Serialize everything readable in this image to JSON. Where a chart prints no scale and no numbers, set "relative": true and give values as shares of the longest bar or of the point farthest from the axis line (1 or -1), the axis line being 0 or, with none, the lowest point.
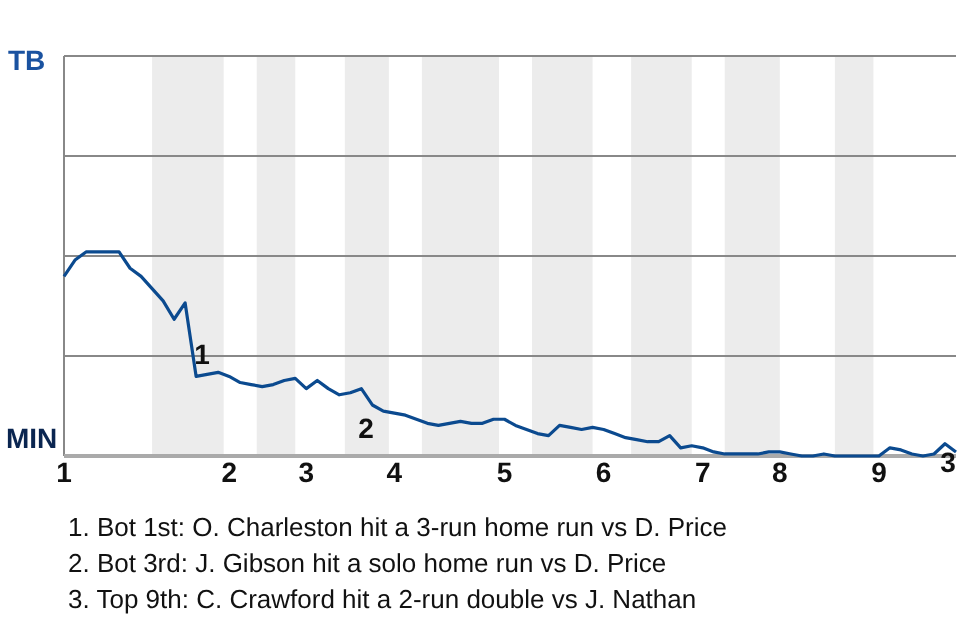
{
  "chart_data": {
    "type": "line",
    "relative": true,
    "marker": "none",
    "line_style": "solid",
    "ref_lines": [
      {
        "axis": "y",
        "value": 0.49,
        "color": "#888888"
      }
    ],
    "categories": [
      "1",
      null,
      null,
      null,
      null,
      null,
      null,
      null,
      null,
      null,
      null,
      null,
      null,
      null,
      null,
      "2",
      null,
      null,
      null,
      null,
      null,
      null,
      "3",
      null,
      null,
      null,
      null,
      null,
      null,
      null,
      "4",
      null,
      null,
      null,
      null,
      null,
      null,
      null,
      null,
      null,
      "5",
      null,
      null,
      null,
      null,
      null,
      null,
      null,
      null,
      "6",
      null,
      null,
      null,
      null,
      null,
      null,
      null,
      null,
      "7",
      null,
      null,
      null,
      null,
      null,
      null,
      "8",
      null,
      null,
      null,
      null,
      null,
      null,
      null,
      null,
      "9",
      null,
      null,
      null,
      null,
      null,
      null,
      null
    ],
    "series": [
      {
        "color": "#0b4a8f",
        "values": [
          0.88,
          0.96,
          1,
          1,
          1,
          1,
          0.92,
          0.88,
          0.82,
          0.76,
          0.67,
          0.75,
          0.39,
          0.4,
          0.41,
          0.39,
          0.36,
          0.35,
          0.34,
          0.35,
          0.37,
          0.38,
          0.33,
          0.37,
          0.33,
          0.3,
          0.31,
          0.33,
          0.25,
          0.22,
          0.21,
          0.2,
          0.18,
          0.16,
          0.15,
          0.16,
          0.17,
          0.16,
          0.16,
          0.18,
          0.18,
          0.15,
          0.13,
          0.11,
          0.1,
          0.15,
          0.14,
          0.13,
          0.14,
          0.13,
          0.11,
          0.09,
          0.08,
          0.07,
          0.07,
          0.1,
          0.04,
          0.05,
          0.04,
          0.02,
          0.01,
          0.01,
          0.01,
          0.01,
          0.02,
          0.02,
          0.01,
          0,
          0,
          0.01,
          0,
          0,
          0,
          0,
          0,
          0.04,
          0.03,
          0.01,
          0,
          0.01,
          0.06,
          0.02
        ]
      }
    ],
    "annotations": [
      "TB",
      "MIN",
      "1",
      "2",
      "3",
      "1. Bot 1st: O. Charleston hit a 3-run home run vs D. Price",
      "2. Bot 3rd: J. Gibson hit a solo home run vs D. Price",
      "3. Top 9th: C. Crawford hit a 2-run double vs J. Nathan"
    ]
  }
}
